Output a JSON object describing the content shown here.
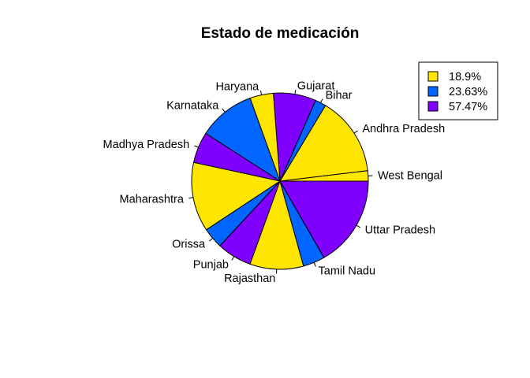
{
  "chart_data": {
    "type": "pie",
    "title": "Estado de medicación",
    "slices": [
      {
        "label": "West Bengal",
        "value": 1.9,
        "color": "#FFE600"
      },
      {
        "label": "Andhra Pradesh",
        "value": 14.5,
        "color": "#FFE600"
      },
      {
        "label": "Bihar",
        "value": 2.0,
        "color": "#0066FF"
      },
      {
        "label": "Gujarat",
        "value": 7.8,
        "color": "#8000FF"
      },
      {
        "label": "Haryana",
        "value": 4.3,
        "color": "#FFE600"
      },
      {
        "label": "Karnataka",
        "value": 10.4,
        "color": "#0066FF"
      },
      {
        "label": "Madhya Pradesh",
        "value": 5.7,
        "color": "#8000FF"
      },
      {
        "label": "Maharashtra",
        "value": 12.7,
        "color": "#FFE600"
      },
      {
        "label": "Orissa",
        "value": 3.8,
        "color": "#0066FF"
      },
      {
        "label": "Punjab",
        "value": 6.4,
        "color": "#8000FF"
      },
      {
        "label": "Rajasthan",
        "value": 9.8,
        "color": "#FFE600"
      },
      {
        "label": "Tamil Nadu",
        "value": 4.0,
        "color": "#0066FF"
      },
      {
        "label": "Uttar Pradesh",
        "value": 16.7,
        "color": "#8000FF"
      }
    ],
    "legend": {
      "placement": "top-right",
      "entries": [
        {
          "label": "18.9%",
          "color": "#FFE600"
        },
        {
          "label": "23.63%",
          "color": "#0066FF"
        },
        {
          "label": "57.47%",
          "color": "#8000FF"
        }
      ]
    }
  }
}
